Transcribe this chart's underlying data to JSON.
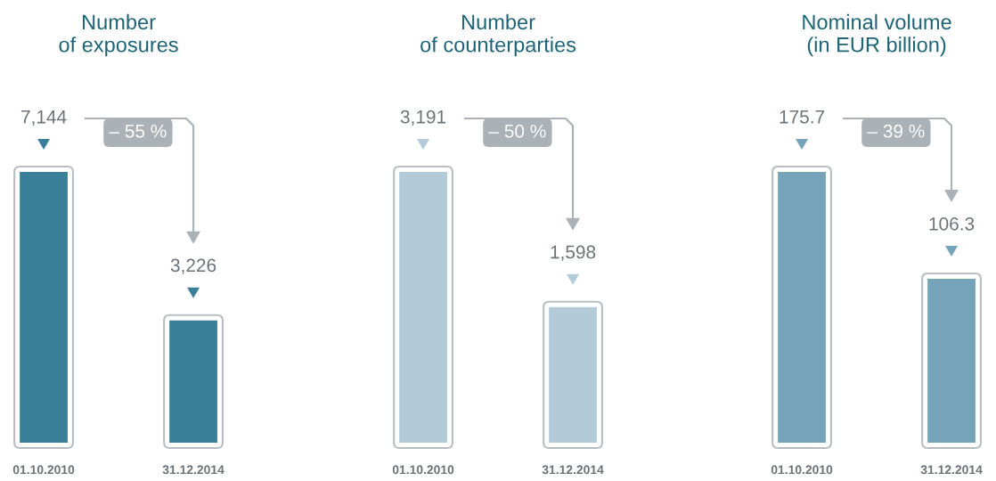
{
  "chart_data": [
    {
      "type": "bar",
      "title": "Number\nof exposures",
      "categories": [
        "01.10.2010",
        "31.12.2014"
      ],
      "values": [
        7144,
        3226
      ],
      "value_labels": [
        "7,144",
        "3,226"
      ],
      "color": "#3a7f99",
      "annotations": [
        "– 55 %"
      ]
    },
    {
      "type": "bar",
      "title": "Number\nof counterparties",
      "categories": [
        "01.10.2010",
        "31.12.2014"
      ],
      "values": [
        3191,
        1598
      ],
      "value_labels": [
        "3,191",
        "1,598"
      ],
      "color": "#b3cbd8",
      "annotations": [
        "– 50 %"
      ]
    },
    {
      "type": "bar",
      "title": "Nominal volume\n(in EUR billion)",
      "categories": [
        "01.10.2010",
        "31.12.2014"
      ],
      "values": [
        175.7,
        106.3
      ],
      "value_labels": [
        "175.7",
        "106.3"
      ],
      "color": "#74a3ba",
      "annotations": [
        "– 39 %"
      ]
    }
  ]
}
